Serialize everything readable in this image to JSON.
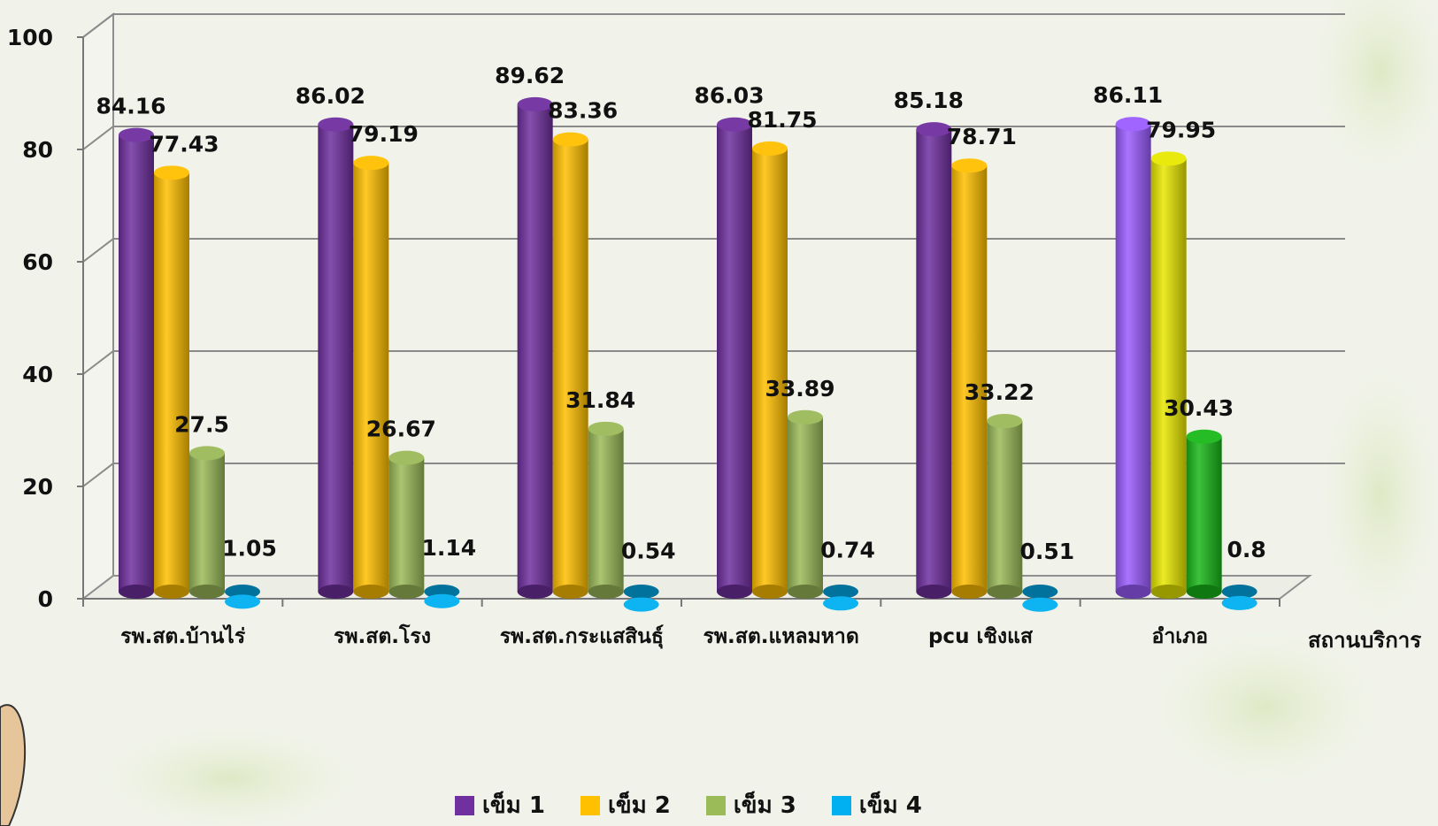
{
  "chart_data": {
    "type": "bar",
    "categories": [
      "รพ.สต.บ้านไร่",
      "รพ.สต.โรง",
      "รพ.สต.กระแสสินธุ์",
      "รพ.สต.แหลมหาด",
      "pcu เชิงแส",
      "อำเภอ"
    ],
    "series": [
      {
        "name": "เข็ม 1",
        "values": [
          84.16,
          86.02,
          89.62,
          86.03,
          85.18,
          86.11
        ],
        "color": "#7030a0"
      },
      {
        "name": "เข็ม 2",
        "values": [
          77.43,
          79.19,
          83.36,
          81.75,
          78.71,
          79.95
        ],
        "color": "#ffc000"
      },
      {
        "name": "เข็ม 3",
        "values": [
          27.5,
          26.67,
          31.84,
          33.89,
          33.22,
          30.43
        ],
        "color": "#9bbb59"
      },
      {
        "name": "เข็ม 4",
        "values": [
          1.05,
          1.14,
          0.54,
          0.74,
          0.51,
          0.8
        ],
        "color": "#00b0f0"
      }
    ],
    "highlight_category_colors": [
      "#9b5cff",
      "#e8e800",
      "#19b819",
      "#00b0f0"
    ],
    "xlabel": "สถานบริการ",
    "ylabel": "",
    "ylim": [
      0,
      100
    ],
    "yticks": [
      "0",
      "20",
      "40",
      "60",
      "80",
      "100"
    ],
    "grid": true,
    "legend_position": "bottom"
  }
}
